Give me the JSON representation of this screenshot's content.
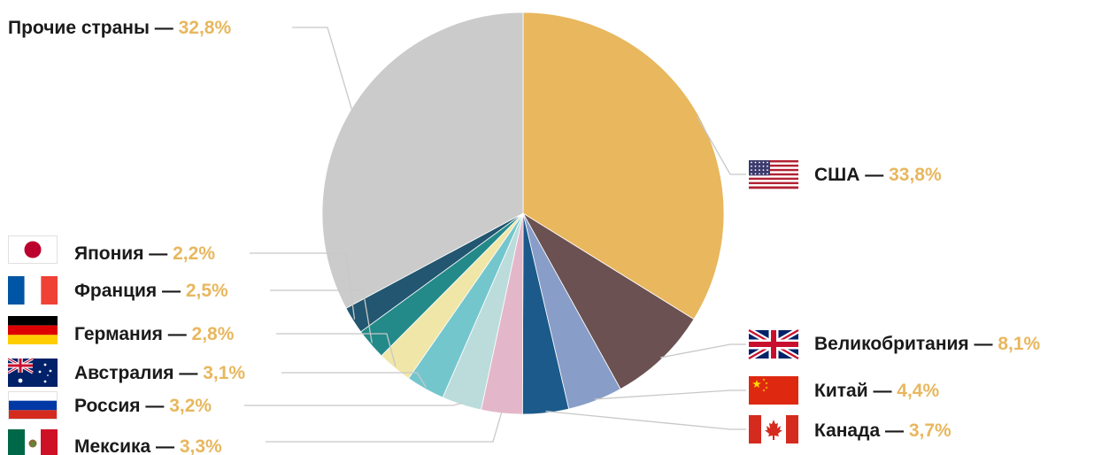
{
  "chart_data": {
    "type": "pie",
    "title": "",
    "dash": "—",
    "slices": [
      {
        "label": "США",
        "pct_text": "33,8%",
        "value": 33.8,
        "color": "#e8b75e",
        "flag": "usa-flag-icon"
      },
      {
        "label": "Великобритания",
        "pct_text": "8,1%",
        "value": 8.1,
        "color": "#6b5152",
        "flag": "uk-flag-icon"
      },
      {
        "label": "Китай",
        "pct_text": "4,4%",
        "value": 4.4,
        "color": "#889dc8",
        "flag": "china-flag-icon"
      },
      {
        "label": "Канада",
        "pct_text": "3,7%",
        "value": 3.7,
        "color": "#1b5a8a",
        "flag": "canada-flag-icon"
      },
      {
        "label": "Мексика",
        "pct_text": "3,3%",
        "value": 3.3,
        "color": "#e3b7c9",
        "flag": "mexico-flag-icon"
      },
      {
        "label": "Россия",
        "pct_text": "3,2%",
        "value": 3.2,
        "color": "#bcdcdc",
        "flag": "russia-flag-icon"
      },
      {
        "label": "Австралия",
        "pct_text": "3,1%",
        "value": 3.1,
        "color": "#74c6cd",
        "flag": "australia-flag-icon"
      },
      {
        "label": "Германия",
        "pct_text": "2,8%",
        "value": 2.8,
        "color": "#f0e6a8",
        "flag": "germany-flag-icon"
      },
      {
        "label": "Франция",
        "pct_text": "2,5%",
        "value": 2.5,
        "color": "#238a89",
        "flag": "france-flag-icon"
      },
      {
        "label": "Япония",
        "pct_text": "2,2%",
        "value": 2.2,
        "color": "#235670",
        "flag": "japan-flag-icon"
      },
      {
        "label": "Прочие страны",
        "pct_text": "32,8%",
        "value": 32.8,
        "color": "#cbcbcb",
        "flag": ""
      }
    ]
  }
}
